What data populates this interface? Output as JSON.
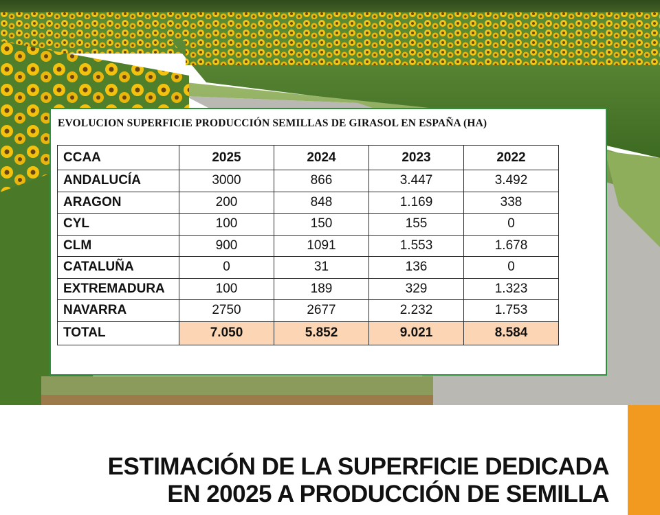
{
  "table": {
    "title": "EVOLUCION SUPERFICIE PRODUCCIÓN SEMILLAS DE GIRASOL EN ESPAÑA (HA)",
    "headers": [
      "CCAA",
      "2025",
      "2024",
      "2023",
      "2022"
    ],
    "rows": [
      [
        "ANDALUCÍA",
        "3000",
        "866",
        "3.447",
        "3.492"
      ],
      [
        "ARAGON",
        "200",
        "848",
        "1.169",
        "338"
      ],
      [
        "CYL",
        "100",
        "150",
        "155",
        "0"
      ],
      [
        "CLM",
        "900",
        "1091",
        "1.553",
        "1.678"
      ],
      [
        "CATALUÑA",
        "0",
        "31",
        "136",
        "0"
      ],
      [
        "EXTREMADURA",
        "100",
        "189",
        "329",
        "1.323"
      ],
      [
        "NAVARRA",
        "2750",
        "2677",
        "2.232",
        "1.753"
      ]
    ],
    "total": [
      "TOTAL",
      "7.050",
      "5.852",
      "9.021",
      "8.584"
    ]
  },
  "headline": {
    "line1": "ESTIMACIÓN DE LA SUPERFICIE DEDICADA",
    "line2": "EN 20025 A PRODUCCIÓN DE SEMILLA"
  },
  "colors": {
    "card_border": "#2f8f3a",
    "total_highlight": "#fcd5b4",
    "accent_bar": "#f29a1f"
  },
  "background_image": "sunflower-field-photo"
}
